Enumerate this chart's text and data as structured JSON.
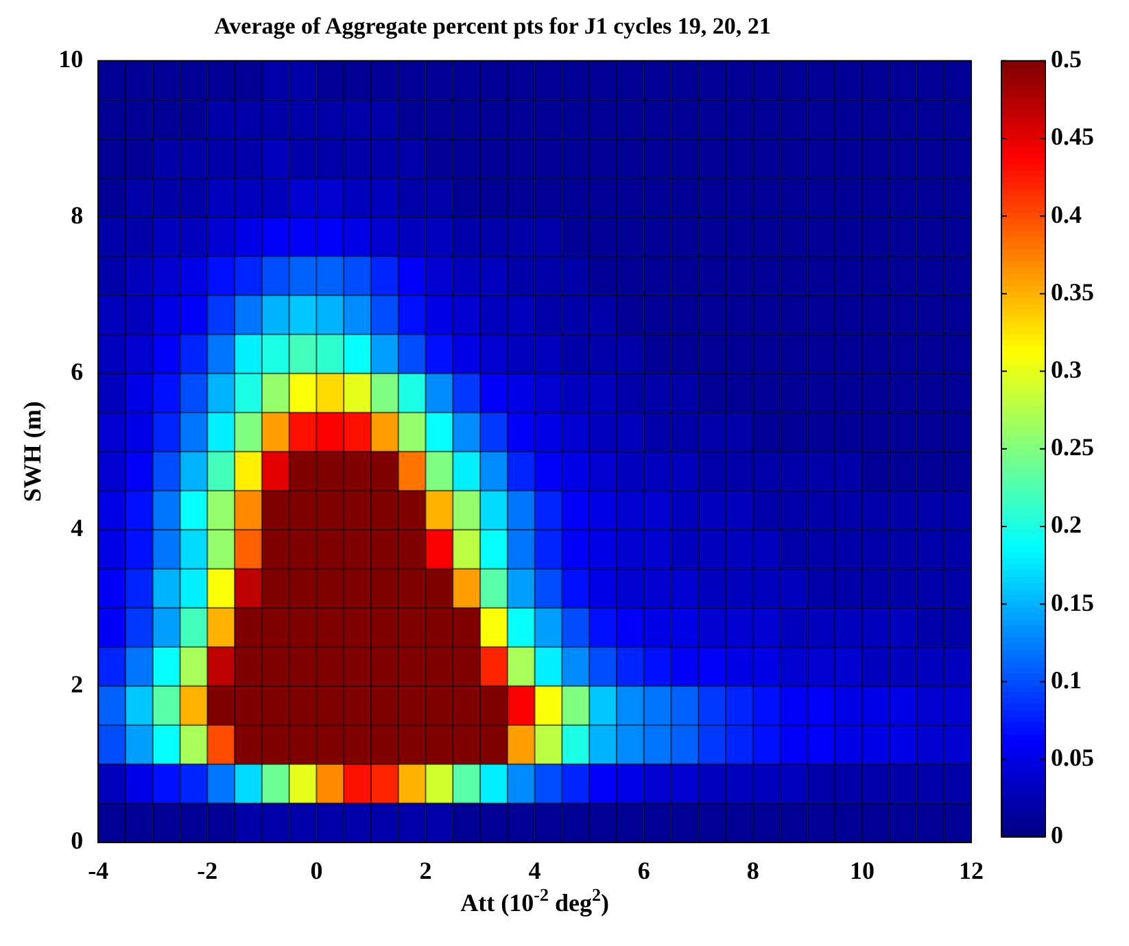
{
  "chart_data": {
    "type": "heatmap",
    "title": "Average of Aggregate percent pts for J1 cycles 19, 20, 21",
    "xlabel": "Att (10$^{-2}$ deg$^{2}$)",
    "ylabel": "SWH (m)",
    "xlim": [
      -4,
      12
    ],
    "xticks": [
      -4,
      -2,
      0,
      2,
      4,
      6,
      8,
      10,
      12
    ],
    "ylim": [
      0,
      10
    ],
    "yticks": [
      0,
      2,
      4,
      6,
      8,
      10
    ],
    "grid": true,
    "clim": [
      0,
      0.5
    ],
    "cticks": [
      0,
      0.05,
      0.1,
      0.15,
      0.2,
      0.25,
      0.3,
      0.35,
      0.4,
      0.45,
      0.5
    ],
    "x": [
      -3.75,
      -3.25,
      -2.75,
      -2.25,
      -1.75,
      -1.25,
      -0.75,
      -0.25,
      0.25,
      0.75,
      1.25,
      1.75,
      2.25,
      2.75,
      3.25,
      3.75,
      4.25,
      4.75,
      5.25,
      5.75,
      6.25,
      6.75,
      7.25,
      7.75,
      8.25,
      8.75,
      9.25,
      9.75,
      10.25,
      10.75,
      11.25,
      11.75
    ],
    "y": [
      9.75,
      9.25,
      8.75,
      8.25,
      7.75,
      7.25,
      6.75,
      6.25,
      5.75,
      5.25,
      4.75,
      4.25,
      3.75,
      3.25,
      2.75,
      2.25,
      1.75,
      1.25,
      0.75,
      0.25
    ],
    "cells": [
      [
        0.01,
        0.01,
        0.01,
        0.01,
        0.01,
        0.01,
        0.02,
        0.02,
        0.01,
        0.01,
        0.01,
        0.01,
        0.01,
        0.01,
        0.01,
        0.01,
        0.01,
        0.01,
        0.01,
        0.01,
        0.01,
        0.01,
        0.01,
        0.01,
        0.01,
        0.01,
        0.01,
        0.01,
        0.01,
        0.01,
        0.01,
        0.01
      ],
      [
        0.01,
        0.01,
        0.01,
        0.01,
        0.02,
        0.02,
        0.02,
        0.02,
        0.02,
        0.02,
        0.02,
        0.01,
        0.01,
        0.01,
        0.01,
        0.01,
        0.01,
        0.01,
        0.01,
        0.01,
        0.01,
        0.01,
        0.01,
        0.01,
        0.01,
        0.01,
        0.01,
        0.01,
        0.01,
        0.01,
        0.01,
        0.01
      ],
      [
        0.01,
        0.01,
        0.02,
        0.02,
        0.02,
        0.02,
        0.03,
        0.02,
        0.02,
        0.02,
        0.02,
        0.02,
        0.01,
        0.01,
        0.01,
        0.01,
        0.01,
        0.01,
        0.01,
        0.01,
        0.01,
        0.01,
        0.01,
        0.01,
        0.01,
        0.01,
        0.01,
        0.01,
        0.01,
        0.01,
        0.01,
        0.01
      ],
      [
        0.01,
        0.02,
        0.02,
        0.02,
        0.03,
        0.03,
        0.03,
        0.04,
        0.04,
        0.03,
        0.03,
        0.02,
        0.02,
        0.01,
        0.01,
        0.01,
        0.01,
        0.01,
        0.01,
        0.01,
        0.01,
        0.01,
        0.01,
        0.01,
        0.01,
        0.01,
        0.01,
        0.01,
        0.01,
        0.01,
        0.01,
        0.01
      ],
      [
        0.02,
        0.02,
        0.03,
        0.03,
        0.04,
        0.05,
        0.06,
        0.06,
        0.06,
        0.05,
        0.04,
        0.03,
        0.03,
        0.02,
        0.02,
        0.02,
        0.02,
        0.01,
        0.01,
        0.01,
        0.01,
        0.01,
        0.01,
        0.01,
        0.01,
        0.01,
        0.01,
        0.01,
        0.01,
        0.01,
        0.01,
        0.01
      ],
      [
        0.02,
        0.03,
        0.04,
        0.05,
        0.07,
        0.08,
        0.1,
        0.11,
        0.11,
        0.1,
        0.08,
        0.06,
        0.04,
        0.03,
        0.03,
        0.02,
        0.02,
        0.02,
        0.01,
        0.01,
        0.01,
        0.01,
        0.01,
        0.01,
        0.01,
        0.01,
        0.01,
        0.01,
        0.01,
        0.01,
        0.01,
        0.01
      ],
      [
        0.03,
        0.03,
        0.05,
        0.06,
        0.09,
        0.12,
        0.15,
        0.16,
        0.15,
        0.13,
        0.1,
        0.07,
        0.05,
        0.04,
        0.03,
        0.03,
        0.02,
        0.02,
        0.02,
        0.01,
        0.01,
        0.01,
        0.01,
        0.01,
        0.01,
        0.01,
        0.01,
        0.01,
        0.01,
        0.01,
        0.01,
        0.01
      ],
      [
        0.03,
        0.04,
        0.06,
        0.08,
        0.12,
        0.18,
        0.2,
        0.22,
        0.21,
        0.19,
        0.14,
        0.1,
        0.07,
        0.05,
        0.04,
        0.03,
        0.03,
        0.02,
        0.02,
        0.02,
        0.01,
        0.01,
        0.01,
        0.01,
        0.01,
        0.01,
        0.01,
        0.01,
        0.01,
        0.01,
        0.01,
        0.01
      ],
      [
        0.03,
        0.05,
        0.07,
        0.1,
        0.15,
        0.2,
        0.26,
        0.31,
        0.33,
        0.3,
        0.25,
        0.2,
        0.13,
        0.09,
        0.06,
        0.05,
        0.04,
        0.03,
        0.03,
        0.02,
        0.02,
        0.02,
        0.01,
        0.01,
        0.01,
        0.01,
        0.01,
        0.01,
        0.01,
        0.01,
        0.01,
        0.01
      ],
      [
        0.04,
        0.05,
        0.08,
        0.12,
        0.18,
        0.25,
        0.36,
        0.43,
        0.44,
        0.43,
        0.36,
        0.26,
        0.19,
        0.13,
        0.09,
        0.06,
        0.05,
        0.04,
        0.03,
        0.03,
        0.02,
        0.02,
        0.02,
        0.02,
        0.01,
        0.01,
        0.01,
        0.01,
        0.01,
        0.01,
        0.01,
        0.01
      ],
      [
        0.04,
        0.06,
        0.1,
        0.15,
        0.22,
        0.32,
        0.45,
        0.5,
        0.5,
        0.5,
        0.5,
        0.38,
        0.25,
        0.18,
        0.13,
        0.08,
        0.06,
        0.05,
        0.04,
        0.03,
        0.03,
        0.03,
        0.02,
        0.02,
        0.02,
        0.02,
        0.02,
        0.02,
        0.01,
        0.01,
        0.01,
        0.01
      ],
      [
        0.05,
        0.07,
        0.12,
        0.19,
        0.26,
        0.37,
        0.5,
        0.5,
        0.5,
        0.5,
        0.5,
        0.5,
        0.35,
        0.26,
        0.17,
        0.12,
        0.08,
        0.06,
        0.05,
        0.04,
        0.04,
        0.03,
        0.03,
        0.03,
        0.02,
        0.02,
        0.02,
        0.02,
        0.02,
        0.02,
        0.02,
        0.02
      ],
      [
        0.05,
        0.07,
        0.12,
        0.17,
        0.26,
        0.39,
        0.5,
        0.5,
        0.5,
        0.5,
        0.5,
        0.5,
        0.44,
        0.28,
        0.19,
        0.12,
        0.08,
        0.06,
        0.05,
        0.04,
        0.04,
        0.03,
        0.03,
        0.03,
        0.03,
        0.02,
        0.02,
        0.02,
        0.02,
        0.02,
        0.02,
        0.02
      ],
      [
        0.06,
        0.08,
        0.15,
        0.18,
        0.31,
        0.47,
        0.5,
        0.5,
        0.5,
        0.5,
        0.5,
        0.5,
        0.5,
        0.36,
        0.23,
        0.14,
        0.1,
        0.07,
        0.05,
        0.04,
        0.04,
        0.04,
        0.03,
        0.03,
        0.03,
        0.03,
        0.02,
        0.02,
        0.02,
        0.02,
        0.02,
        0.02
      ],
      [
        0.06,
        0.09,
        0.14,
        0.22,
        0.35,
        0.5,
        0.5,
        0.5,
        0.5,
        0.5,
        0.5,
        0.5,
        0.5,
        0.5,
        0.31,
        0.19,
        0.14,
        0.1,
        0.07,
        0.06,
        0.05,
        0.05,
        0.04,
        0.04,
        0.04,
        0.03,
        0.03,
        0.03,
        0.03,
        0.03,
        0.02,
        0.02
      ],
      [
        0.08,
        0.12,
        0.19,
        0.27,
        0.47,
        0.5,
        0.5,
        0.5,
        0.5,
        0.5,
        0.5,
        0.5,
        0.5,
        0.5,
        0.42,
        0.27,
        0.18,
        0.13,
        0.1,
        0.08,
        0.07,
        0.06,
        0.06,
        0.05,
        0.05,
        0.04,
        0.04,
        0.04,
        0.03,
        0.03,
        0.03,
        0.03
      ],
      [
        0.11,
        0.16,
        0.23,
        0.35,
        0.5,
        0.5,
        0.5,
        0.5,
        0.5,
        0.5,
        0.5,
        0.5,
        0.5,
        0.5,
        0.5,
        0.44,
        0.31,
        0.25,
        0.16,
        0.13,
        0.12,
        0.11,
        0.09,
        0.08,
        0.07,
        0.06,
        0.06,
        0.05,
        0.05,
        0.05,
        0.04,
        0.04
      ],
      [
        0.1,
        0.14,
        0.19,
        0.27,
        0.4,
        0.5,
        0.5,
        0.5,
        0.5,
        0.5,
        0.5,
        0.5,
        0.5,
        0.5,
        0.5,
        0.36,
        0.28,
        0.2,
        0.15,
        0.13,
        0.12,
        0.11,
        0.09,
        0.08,
        0.07,
        0.06,
        0.06,
        0.05,
        0.05,
        0.05,
        0.04,
        0.04
      ],
      [
        0.03,
        0.05,
        0.07,
        0.08,
        0.12,
        0.17,
        0.24,
        0.3,
        0.37,
        0.43,
        0.42,
        0.35,
        0.29,
        0.23,
        0.18,
        0.13,
        0.1,
        0.08,
        0.06,
        0.05,
        0.04,
        0.04,
        0.03,
        0.03,
        0.03,
        0.03,
        0.02,
        0.02,
        0.02,
        0.02,
        0.02,
        0.02
      ],
      [
        0.01,
        0.01,
        0.01,
        0.01,
        0.01,
        0.02,
        0.02,
        0.02,
        0.02,
        0.02,
        0.02,
        0.02,
        0.02,
        0.01,
        0.01,
        0.01,
        0.01,
        0.01,
        0.01,
        0.01,
        0.01,
        0.01,
        0.01,
        0.01,
        0.01,
        0.01,
        0.01,
        0.01,
        0.01,
        0.01,
        0.01,
        0.01
      ]
    ]
  }
}
